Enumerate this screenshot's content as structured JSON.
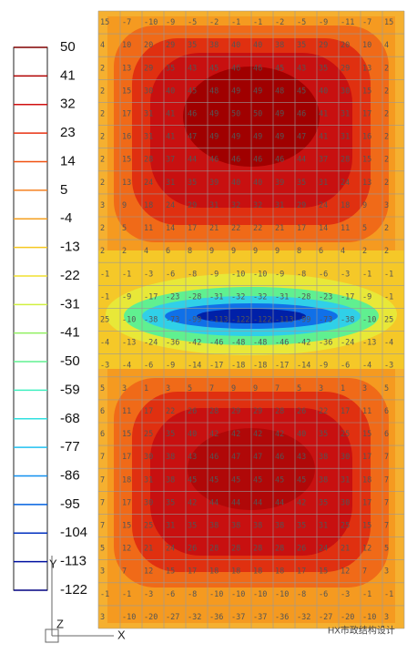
{
  "legend": {
    "levels": [
      {
        "value": 50,
        "color": "#800000"
      },
      {
        "value": 41,
        "color": "#b00000"
      },
      {
        "value": 32,
        "color": "#d01010"
      },
      {
        "value": 23,
        "color": "#e83010"
      },
      {
        "value": 14,
        "color": "#f05010"
      },
      {
        "value": 5,
        "color": "#f58020"
      },
      {
        "value": -4,
        "color": "#f5a020"
      },
      {
        "value": -13,
        "color": "#f5c820"
      },
      {
        "value": -22,
        "color": "#f0e030"
      },
      {
        "value": -31,
        "color": "#d0f040"
      },
      {
        "value": -41,
        "color": "#90f060"
      },
      {
        "value": -50,
        "color": "#60f090"
      },
      {
        "value": -59,
        "color": "#40f0c0"
      },
      {
        "value": -68,
        "color": "#30e0e0"
      },
      {
        "value": -77,
        "color": "#20c0f0"
      },
      {
        "value": -86,
        "color": "#1090f0"
      },
      {
        "value": -95,
        "color": "#0060e0"
      },
      {
        "value": -104,
        "color": "#0030c0"
      },
      {
        "value": -113,
        "color": "#0010a0"
      },
      {
        "value": -122,
        "color": "#000080"
      }
    ]
  },
  "axes": {
    "y": "Y",
    "z": "Z",
    "x": "X"
  },
  "watermark": "HX市政结构设计",
  "grid": {
    "rows": [
      [
        15,
        -7,
        -10,
        -9,
        -5,
        -2,
        -1,
        -1,
        -2,
        -5,
        -9,
        -11,
        -7,
        15
      ],
      [
        4,
        10,
        20,
        29,
        35,
        38,
        40,
        40,
        38,
        35,
        29,
        20,
        10,
        4
      ],
      [
        2,
        13,
        29,
        35,
        43,
        45,
        46,
        46,
        45,
        43,
        35,
        29,
        13,
        2
      ],
      [
        2,
        15,
        30,
        40,
        45,
        48,
        49,
        49,
        48,
        45,
        40,
        30,
        15,
        2
      ],
      [
        2,
        17,
        31,
        41,
        46,
        49,
        50,
        50,
        49,
        46,
        41,
        31,
        17,
        2
      ],
      [
        2,
        16,
        31,
        41,
        47,
        49,
        49,
        49,
        49,
        47,
        41,
        31,
        16,
        2
      ],
      [
        2,
        15,
        28,
        37,
        44,
        46,
        46,
        46,
        46,
        44,
        37,
        28,
        15,
        2
      ],
      [
        2,
        13,
        24,
        31,
        35,
        39,
        40,
        40,
        39,
        35,
        31,
        24,
        13,
        2
      ],
      [
        3,
        9,
        18,
        24,
        29,
        31,
        32,
        32,
        31,
        29,
        24,
        18,
        9,
        3
      ],
      [
        2,
        5,
        11,
        14,
        17,
        21,
        22,
        22,
        21,
        17,
        14,
        11,
        5,
        2
      ],
      [
        2,
        2,
        4,
        6,
        8,
        9,
        9,
        9,
        9,
        8,
        6,
        4,
        2,
        2
      ],
      [
        -1,
        -1,
        -3,
        -6,
        -8,
        -9,
        -10,
        -10,
        -9,
        -8,
        -6,
        -3,
        -1,
        -1
      ],
      [
        -1,
        -9,
        -17,
        -23,
        -28,
        -31,
        -32,
        -32,
        -31,
        -28,
        -23,
        -17,
        -9,
        -1
      ],
      [
        25,
        -10,
        -38,
        -73,
        -99,
        -113,
        -122,
        -122,
        -113,
        -99,
        -73,
        -38,
        -10,
        25
      ],
      [
        -4,
        -13,
        -24,
        -36,
        -42,
        -46,
        -48,
        -48,
        -46,
        -42,
        -36,
        -24,
        -13,
        -4
      ],
      [
        -3,
        -4,
        -6,
        -9,
        -14,
        -17,
        -18,
        -18,
        -17,
        -14,
        -9,
        -6,
        -4,
        -3
      ],
      [
        5,
        3,
        1,
        3,
        5,
        7,
        9,
        9,
        7,
        5,
        3,
        1,
        3,
        5
      ],
      [
        6,
        11,
        17,
        22,
        26,
        28,
        29,
        29,
        28,
        26,
        22,
        17,
        11,
        6
      ],
      [
        6,
        15,
        25,
        35,
        40,
        42,
        42,
        42,
        42,
        40,
        35,
        25,
        15,
        6
      ],
      [
        7,
        17,
        30,
        38,
        43,
        46,
        47,
        47,
        46,
        43,
        38,
        30,
        17,
        7
      ],
      [
        7,
        18,
        31,
        38,
        45,
        45,
        45,
        45,
        45,
        45,
        38,
        31,
        18,
        7
      ],
      [
        7,
        17,
        30,
        35,
        42,
        44,
        44,
        44,
        44,
        42,
        35,
        30,
        17,
        7
      ],
      [
        7,
        15,
        25,
        31,
        35,
        38,
        38,
        38,
        38,
        35,
        31,
        25,
        15,
        7
      ],
      [
        5,
        12,
        21,
        24,
        26,
        28,
        28,
        28,
        28,
        26,
        24,
        21,
        12,
        5
      ],
      [
        3,
        7,
        12,
        15,
        17,
        18,
        18,
        18,
        18,
        17,
        15,
        12,
        7,
        3
      ],
      [
        -1,
        -1,
        -3,
        -6,
        -8,
        -10,
        -10,
        -10,
        -10,
        -8,
        -6,
        -3,
        -1,
        -1
      ],
      [
        3,
        -10,
        -20,
        -27,
        -32,
        -36,
        -37,
        -37,
        -36,
        -32,
        -27,
        -20,
        -10,
        3
      ]
    ]
  }
}
